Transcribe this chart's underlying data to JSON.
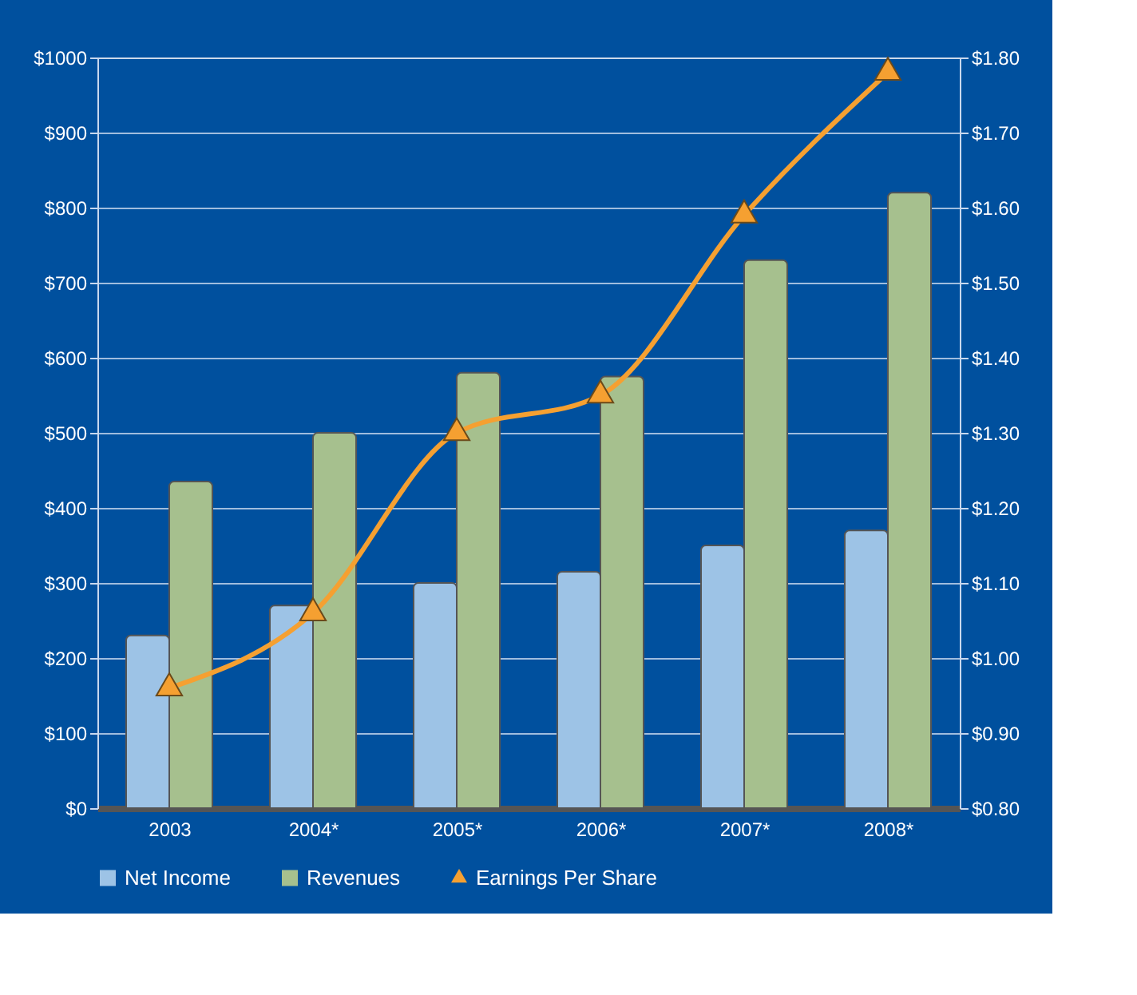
{
  "chart_data": {
    "type": "bar",
    "categories": [
      "2003",
      "2004*",
      "2005*",
      "2006*",
      "2007*",
      "2008*"
    ],
    "series": [
      {
        "name": "Net Income",
        "color": "#9dc3e6",
        "values": [
          230,
          270,
          300,
          315,
          350,
          370
        ]
      },
      {
        "name": "Revenues",
        "color": "#a6c08e",
        "values": [
          435,
          500,
          580,
          575,
          730,
          820
        ]
      },
      {
        "name": "Earnings Per Share",
        "color": "#f5a031",
        "type": "line",
        "axis": "y2",
        "marker": "triangle",
        "values": [
          0.96,
          1.06,
          1.3,
          1.35,
          1.59,
          1.78
        ]
      }
    ],
    "ylim": [
      0,
      1000
    ],
    "yticks": [
      {
        "value": 0,
        "label": "$0"
      },
      {
        "value": 100,
        "label": "$100"
      },
      {
        "value": 200,
        "label": "$200"
      },
      {
        "value": 300,
        "label": "$300"
      },
      {
        "value": 400,
        "label": "$400"
      },
      {
        "value": 500,
        "label": "$500"
      },
      {
        "value": 600,
        "label": "$600"
      },
      {
        "value": 700,
        "label": "$700"
      },
      {
        "value": 800,
        "label": "$800"
      },
      {
        "value": 900,
        "label": "$900"
      },
      {
        "value": 1000,
        "label": "$1000"
      }
    ],
    "y2lim": [
      0.8,
      1.8
    ],
    "y2ticks": [
      {
        "value": 0.8,
        "label": "$0.80"
      },
      {
        "value": 0.9,
        "label": "$0.90"
      },
      {
        "value": 1.0,
        "label": "$1.00"
      },
      {
        "value": 1.1,
        "label": "$1.10"
      },
      {
        "value": 1.2,
        "label": "$1.20"
      },
      {
        "value": 1.3,
        "label": "$1.30"
      },
      {
        "value": 1.4,
        "label": "$1.40"
      },
      {
        "value": 1.5,
        "label": "$1.50"
      },
      {
        "value": 1.6,
        "label": "$1.60"
      },
      {
        "value": 1.7,
        "label": "$1.70"
      },
      {
        "value": 1.8,
        "label": "$1.80"
      }
    ],
    "grid": "y",
    "legend": "bottom"
  }
}
